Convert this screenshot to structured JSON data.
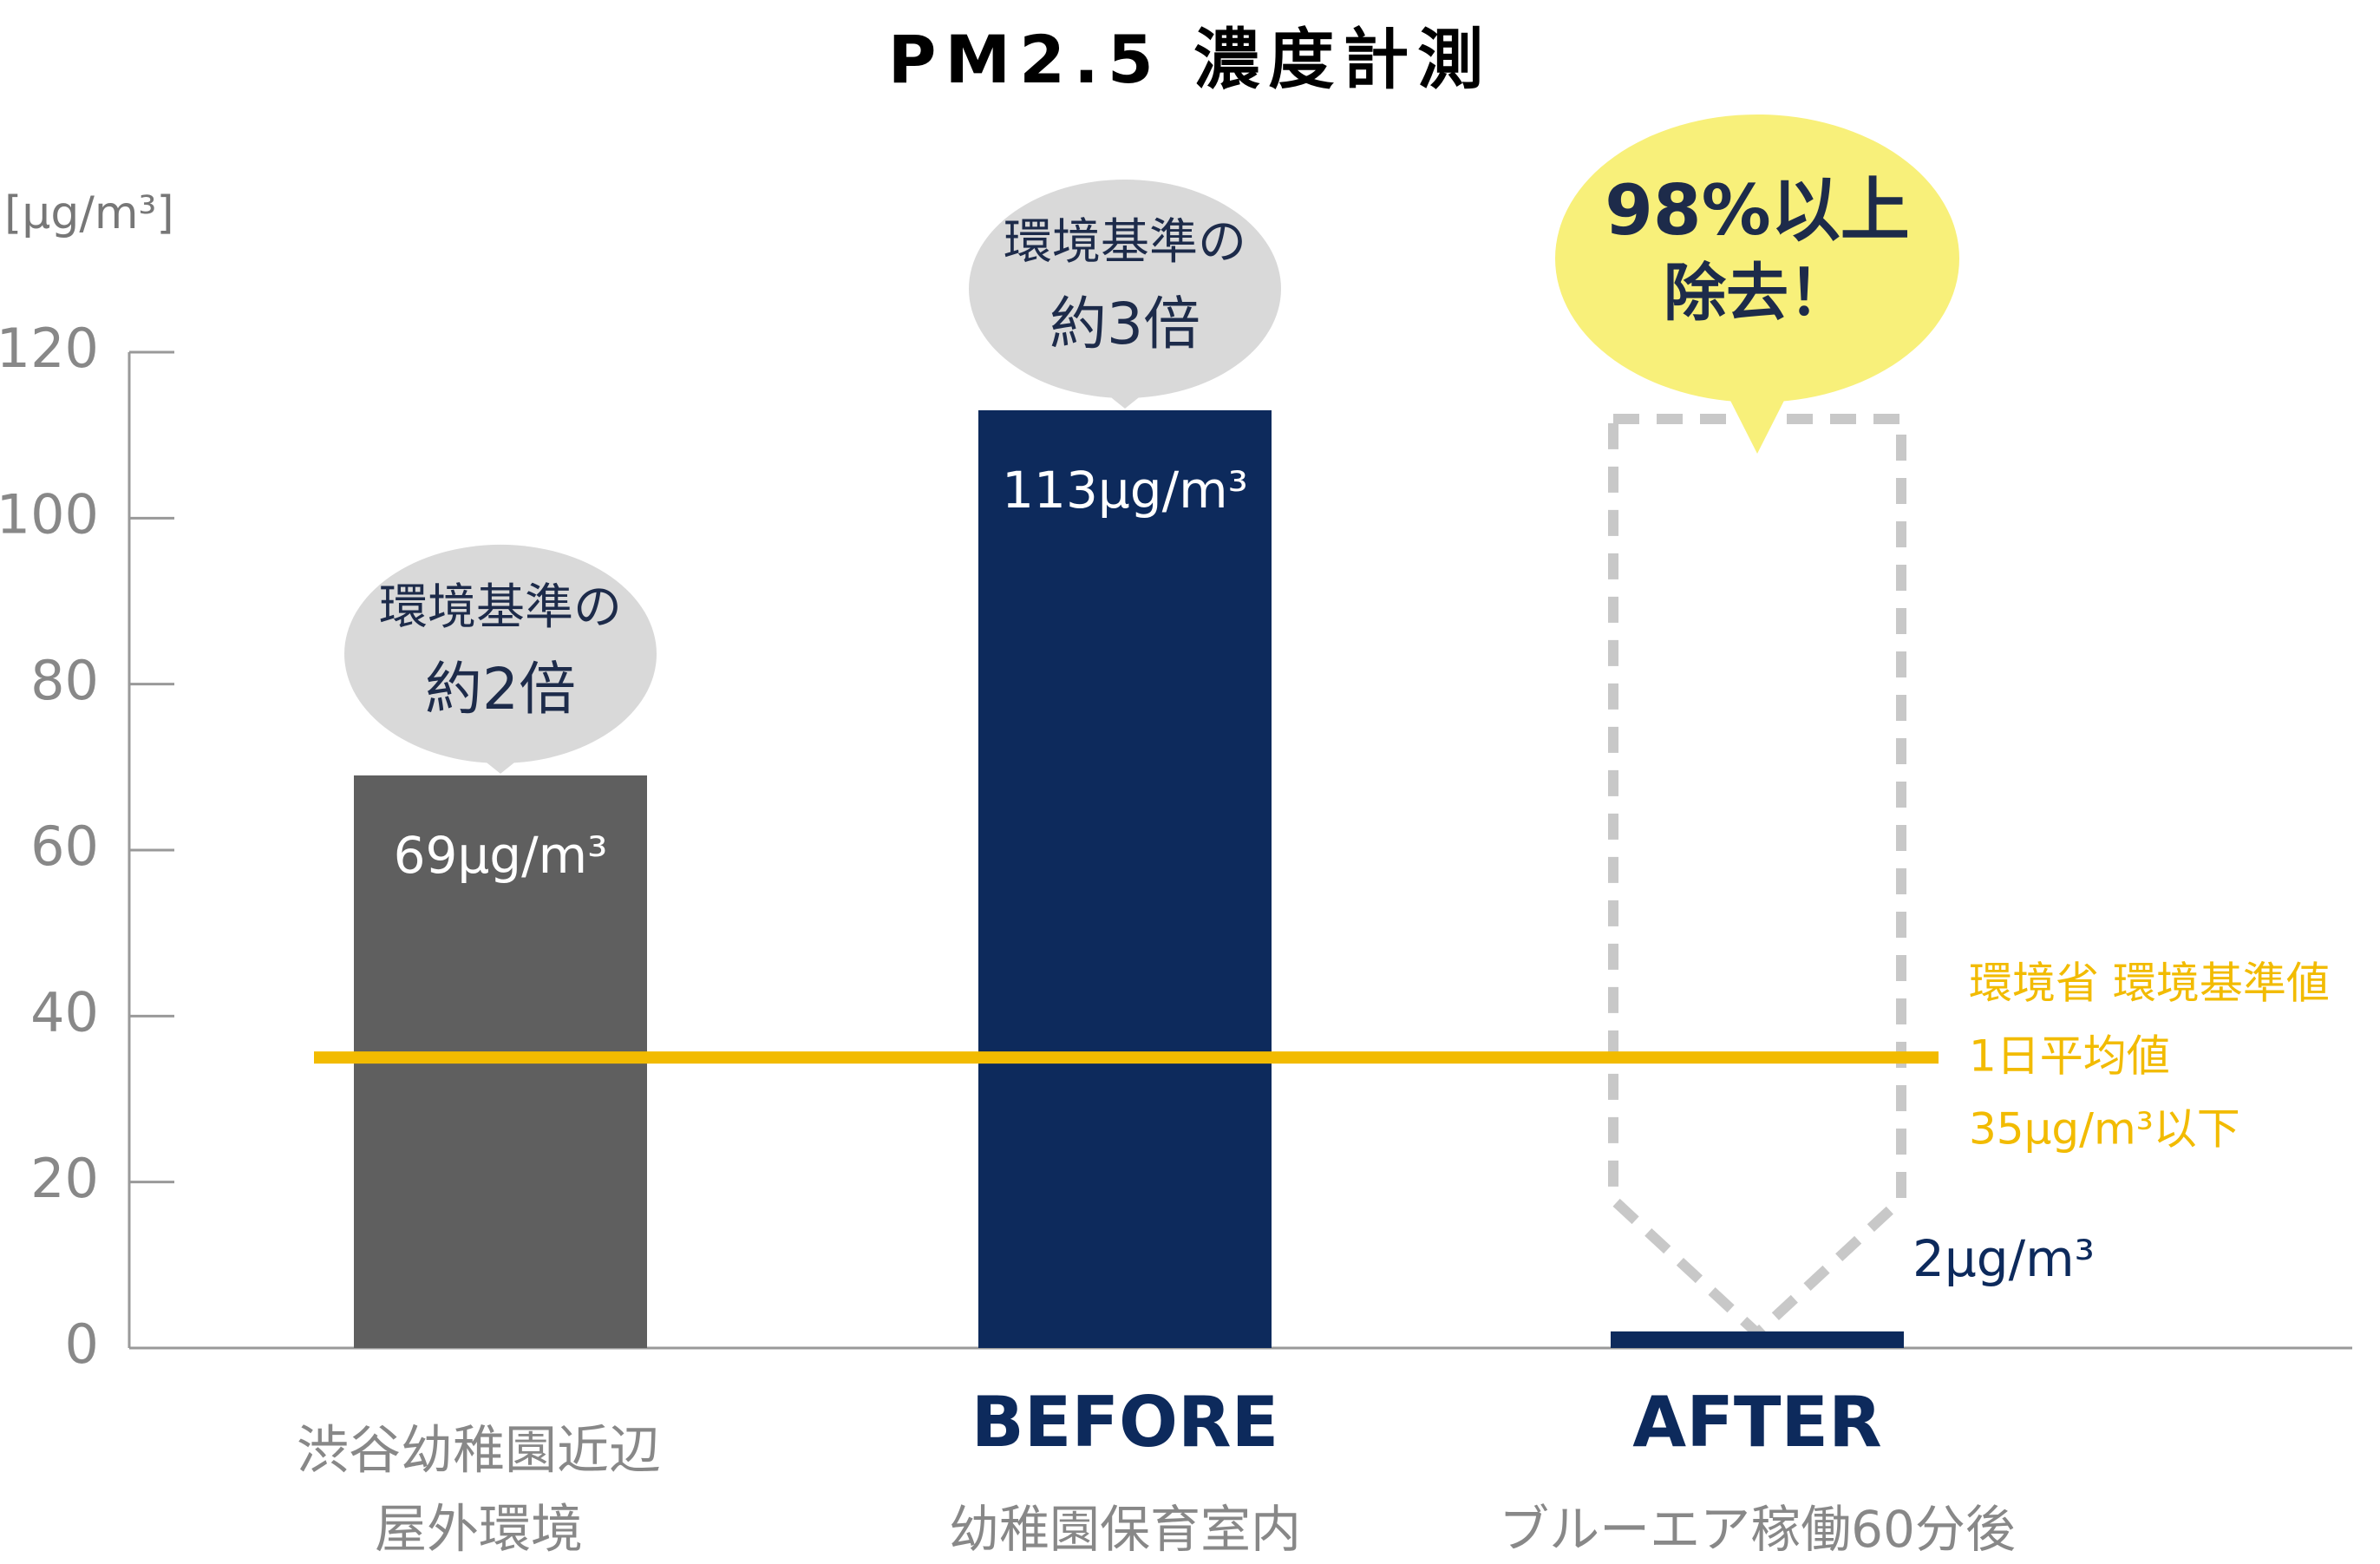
{
  "chart_data": {
    "type": "bar",
    "title": "PM2.5 濃度計測",
    "y_label": "[μg/m³]",
    "categories": [
      [
        "渋谷幼稚園近辺",
        "屋外環境"
      ],
      [
        "BEFORE",
        "幼稚園保育室内"
      ],
      [
        "AFTER",
        "ブルーエア稼働60分後"
      ]
    ],
    "values": [
      69,
      113,
      2
    ],
    "value_labels": [
      "69μg/m³",
      "113μg/m³",
      "2μg/m³"
    ],
    "colors": [
      "#5f5f5f",
      "#0d2a5c",
      "#0d2a5c"
    ],
    "bubbles": [
      [
        "環境基準の",
        "約2倍"
      ],
      [
        "環境基準の",
        "約3倍"
      ],
      [
        "98%以上",
        "除去！"
      ]
    ],
    "reference_line": {
      "value": 35,
      "color": "#f2bb00",
      "label": [
        "環境省 環境基準値",
        "1日平均値",
        "35μg/m³以下"
      ]
    },
    "ylim": [
      0,
      120
    ],
    "yticks": [
      0,
      20,
      40,
      60,
      80,
      100,
      120
    ]
  }
}
